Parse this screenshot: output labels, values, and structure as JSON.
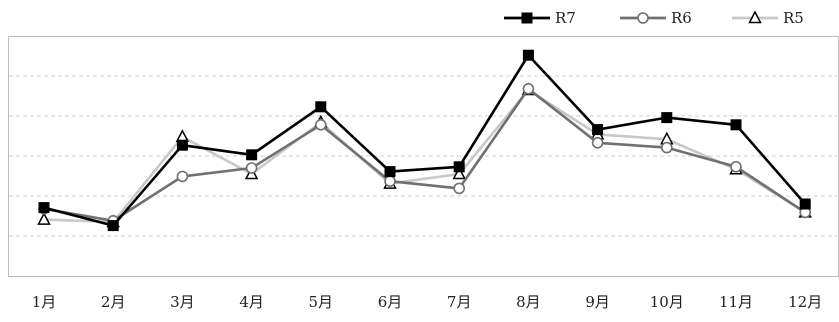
{
  "chart_data": {
    "type": "line",
    "title": "",
    "xlabel": "",
    "ylabel": "",
    "categories": [
      "1月",
      "2月",
      "3月",
      "4月",
      "5月",
      "6月",
      "7月",
      "8月",
      "9月",
      "10月",
      "11月",
      "12月"
    ],
    "ylim": [
      0,
      100
    ],
    "y_ticks_shown": false,
    "grid": "horizontal dashed",
    "legend": "top-right",
    "series": [
      {
        "name": "R7",
        "color": "#000000",
        "marker": "filled-square",
        "values": [
          28.5,
          21,
          54.5,
          50.5,
          70.5,
          43.5,
          45.5,
          92,
          61,
          66,
          63,
          30
        ]
      },
      {
        "name": "R6",
        "color": "#707070",
        "marker": "open-circle",
        "values": [
          28,
          23,
          41.5,
          45,
          63,
          39.5,
          36.5,
          78,
          55.5,
          53.5,
          45.5,
          26.5
        ]
      },
      {
        "name": "R5",
        "color": "#c8c8c8",
        "marker": "open-triangle",
        "values": [
          23.5,
          22.5,
          58,
          42.5,
          64,
          38.5,
          42.5,
          77.5,
          59,
          57,
          44.5,
          26.5
        ]
      }
    ]
  }
}
